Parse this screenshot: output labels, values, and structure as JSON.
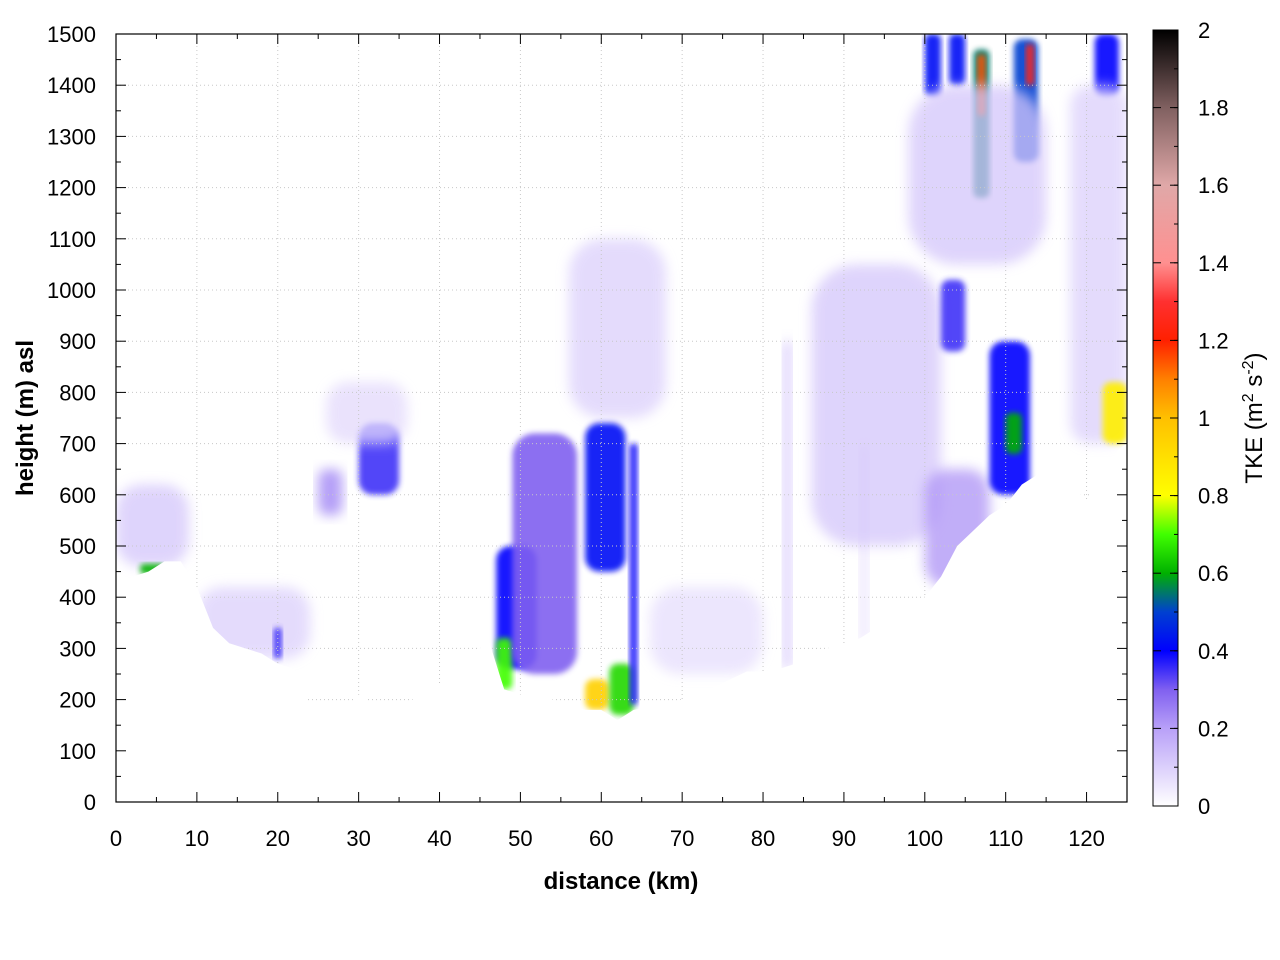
{
  "chart_data": {
    "type": "heatmap",
    "xlabel": "distance (km)",
    "ylabel": "height (m) asl",
    "xlim": [
      0,
      125
    ],
    "ylim": [
      0,
      1500
    ],
    "x_ticks": [
      0,
      10,
      20,
      30,
      40,
      50,
      60,
      70,
      80,
      90,
      100,
      110,
      120
    ],
    "y_ticks": [
      0,
      100,
      200,
      300,
      400,
      500,
      600,
      700,
      800,
      900,
      1000,
      1100,
      1200,
      1300,
      1400,
      1500
    ],
    "grid": true,
    "colorbar": {
      "title": "TKE (m2 s-2)",
      "title_main": "TKE (m",
      "title_sup1": "2",
      "title_mid": " s",
      "title_sup2": "-2",
      "title_end": ")",
      "range": [
        0,
        2
      ],
      "ticks": [
        "0",
        "0.2",
        "0.4",
        "0.6",
        "0.8",
        "1",
        "1.2",
        "1.4",
        "1.6",
        "1.8",
        "2"
      ],
      "stops": [
        {
          "v": 0.0,
          "color": "#ffffff"
        },
        {
          "v": 0.2,
          "color": "#b8a0f8"
        },
        {
          "v": 0.3,
          "color": "#8060f0"
        },
        {
          "v": 0.4,
          "color": "#0000ff"
        },
        {
          "v": 0.5,
          "color": "#0040d0"
        },
        {
          "v": 0.6,
          "color": "#00b000"
        },
        {
          "v": 0.7,
          "color": "#40ff00"
        },
        {
          "v": 0.8,
          "color": "#ffff00"
        },
        {
          "v": 1.0,
          "color": "#ffc000"
        },
        {
          "v": 1.1,
          "color": "#ff8000"
        },
        {
          "v": 1.2,
          "color": "#ff2000"
        },
        {
          "v": 1.3,
          "color": "#ff3030"
        },
        {
          "v": 1.4,
          "color": "#ff9090"
        },
        {
          "v": 1.6,
          "color": "#e0a8a8"
        },
        {
          "v": 1.8,
          "color": "#806060"
        },
        {
          "v": 2.0,
          "color": "#000000"
        }
      ]
    },
    "terrain": [
      [
        0,
        410
      ],
      [
        2,
        440
      ],
      [
        4,
        450
      ],
      [
        6,
        470
      ],
      [
        8,
        470
      ],
      [
        10,
        420
      ],
      [
        12,
        340
      ],
      [
        14,
        310
      ],
      [
        16,
        300
      ],
      [
        18,
        290
      ],
      [
        20,
        270
      ],
      [
        22,
        260
      ],
      [
        24,
        190
      ],
      [
        26,
        150
      ],
      [
        28,
        170
      ],
      [
        30,
        210
      ],
      [
        32,
        190
      ],
      [
        34,
        160
      ],
      [
        36,
        190
      ],
      [
        38,
        220
      ],
      [
        40,
        230
      ],
      [
        42,
        240
      ],
      [
        44,
        280
      ],
      [
        46,
        320
      ],
      [
        48,
        220
      ],
      [
        50,
        210
      ],
      [
        52,
        205
      ],
      [
        54,
        200
      ],
      [
        56,
        190
      ],
      [
        58,
        180
      ],
      [
        60,
        180
      ],
      [
        62,
        160
      ],
      [
        64,
        180
      ],
      [
        66,
        185
      ],
      [
        68,
        195
      ],
      [
        70,
        200
      ],
      [
        72,
        210
      ],
      [
        74,
        225
      ],
      [
        76,
        240
      ],
      [
        78,
        255
      ],
      [
        80,
        255
      ],
      [
        82,
        260
      ],
      [
        84,
        270
      ],
      [
        86,
        290
      ],
      [
        88,
        300
      ],
      [
        90,
        310
      ],
      [
        92,
        320
      ],
      [
        94,
        340
      ],
      [
        96,
        360
      ],
      [
        98,
        380
      ],
      [
        100,
        400
      ],
      [
        102,
        440
      ],
      [
        104,
        500
      ],
      [
        106,
        530
      ],
      [
        108,
        560
      ],
      [
        110,
        580
      ],
      [
        112,
        620
      ],
      [
        114,
        640
      ],
      [
        116,
        610
      ],
      [
        118,
        620
      ],
      [
        120,
        590
      ],
      [
        122,
        640
      ],
      [
        124,
        690
      ],
      [
        125,
        700
      ]
    ],
    "regions": [
      {
        "name": "left-slope-layer",
        "x": [
          0,
          9
        ],
        "y": [
          460,
          620
        ],
        "tke": 0.12
      },
      {
        "name": "left-surface-hotspot",
        "x": [
          3,
          6
        ],
        "y": [
          445,
          465
        ],
        "tke": 0.6
      },
      {
        "name": "low-valley-layer",
        "x": [
          10,
          24
        ],
        "y": [
          280,
          420
        ],
        "tke": 0.1
      },
      {
        "name": "hill-20-core",
        "x": [
          19.5,
          20.5
        ],
        "y": [
          280,
          340
        ],
        "tke": 0.35
      },
      {
        "name": "plume-26",
        "x": [
          25,
          28
        ],
        "y": [
          560,
          650
        ],
        "tke": 0.25
      },
      {
        "name": "plume-32",
        "x": [
          30,
          35
        ],
        "y": [
          600,
          740
        ],
        "tke": 0.35
      },
      {
        "name": "upper-haze-30",
        "x": [
          26,
          36
        ],
        "y": [
          700,
          820
        ],
        "tke": 0.08
      },
      {
        "name": "valley-48",
        "x": [
          47,
          52
        ],
        "y": [
          260,
          500
        ],
        "tke": 0.4
      },
      {
        "name": "core-48-surface",
        "x": [
          47,
          49
        ],
        "y": [
          220,
          320
        ],
        "tke": 0.7
      },
      {
        "name": "column-52",
        "x": [
          49,
          57
        ],
        "y": [
          250,
          720
        ],
        "tke": 0.3
      },
      {
        "name": "haze-56",
        "x": [
          56,
          68
        ],
        "y": [
          750,
          1100
        ],
        "tke": 0.1
      },
      {
        "name": "column-60",
        "x": [
          58,
          63
        ],
        "y": [
          450,
          740
        ],
        "tke": 0.42
      },
      {
        "name": "surface-60-hot",
        "x": [
          58,
          61
        ],
        "y": [
          180,
          240
        ],
        "tke": 0.95
      },
      {
        "name": "surface-62-green",
        "x": [
          61,
          64
        ],
        "y": [
          170,
          270
        ],
        "tke": 0.65
      },
      {
        "name": "thin-column-64",
        "x": [
          63.5,
          64.5
        ],
        "y": [
          190,
          700
        ],
        "tke": 0.38
      },
      {
        "name": "mid-haze-75",
        "x": [
          66,
          80
        ],
        "y": [
          250,
          420
        ],
        "tke": 0.07
      },
      {
        "name": "streak-83",
        "x": [
          82.5,
          83.5
        ],
        "y": [
          260,
          900
        ],
        "tke": 0.15
      },
      {
        "name": "streak-92",
        "x": [
          92,
          93
        ],
        "y": [
          310,
          700
        ],
        "tke": 0.08
      },
      {
        "name": "haze-88",
        "x": [
          86,
          102
        ],
        "y": [
          500,
          1050
        ],
        "tke": 0.12
      },
      {
        "name": "blob-104",
        "x": [
          102,
          105
        ],
        "y": [
          880,
          1020
        ],
        "tke": 0.35
      },
      {
        "name": "diag-plume-105",
        "x": [
          100,
          108
        ],
        "y": [
          420,
          650
        ],
        "tke": 0.22
      },
      {
        "name": "plume-111",
        "x": [
          108,
          113
        ],
        "y": [
          600,
          900
        ],
        "tke": 0.4
      },
      {
        "name": "core-111",
        "x": [
          110,
          112
        ],
        "y": [
          680,
          760
        ],
        "tke": 0.6
      },
      {
        "name": "upper-column-107",
        "x": [
          106,
          108
        ],
        "y": [
          1180,
          1470
        ],
        "tke": 0.55
      },
      {
        "name": "hot-107",
        "x": [
          106.5,
          107.5
        ],
        "y": [
          1340,
          1460
        ],
        "tke": 1.15
      },
      {
        "name": "upper-column-112",
        "x": [
          111,
          114
        ],
        "y": [
          1250,
          1490
        ],
        "tke": 0.5
      },
      {
        "name": "hot-113",
        "x": [
          112.5,
          113.5
        ],
        "y": [
          1400,
          1480
        ],
        "tke": 1.25
      },
      {
        "name": "spike-101",
        "x": [
          100,
          102
        ],
        "y": [
          1380,
          1500
        ],
        "tke": 0.42
      },
      {
        "name": "spike-104",
        "x": [
          103,
          105
        ],
        "y": [
          1400,
          1500
        ],
        "tke": 0.42
      },
      {
        "name": "upper-haze-104",
        "x": [
          98,
          115
        ],
        "y": [
          1050,
          1400
        ],
        "tke": 0.12
      },
      {
        "name": "right-top",
        "x": [
          121,
          124
        ],
        "y": [
          1380,
          1500
        ],
        "tke": 0.4
      },
      {
        "name": "right-haze",
        "x": [
          118,
          125
        ],
        "y": [
          700,
          1400
        ],
        "tke": 0.1
      },
      {
        "name": "right-surface-hot",
        "x": [
          122,
          125
        ],
        "y": [
          700,
          820
        ],
        "tke": 0.85
      }
    ]
  }
}
